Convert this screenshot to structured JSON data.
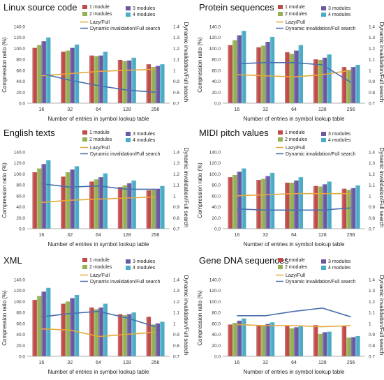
{
  "colors": {
    "one_module": "#bf4b4b",
    "two_modules": "#93b254",
    "three_modules": "#6c57a0",
    "four_modules": "#4bacc6",
    "lazy_full": "#e4a93c",
    "dynamic_full": "#4a6fb0"
  },
  "chart_data": [
    {
      "type": "bar",
      "title": "Linux source code",
      "xlabel": "Number of entries in symbol lookup table",
      "ylabel": "Compression ratio (%)",
      "ylabel2": "Dynamic invalidation/Full search",
      "categories": [
        "16",
        "32",
        "64",
        "128",
        "256"
      ],
      "ylim": [
        0,
        140
      ],
      "yticks": [
        "0.0",
        "20.0",
        "40.0",
        "60.0",
        "80.0",
        "100.0",
        "120.0",
        "140.0"
      ],
      "y2lim": [
        0.7,
        1.4
      ],
      "y2ticks": [
        "0.7",
        "0.8",
        "0.9",
        "1",
        "1.1",
        "1.2",
        "1.3",
        "1.4"
      ],
      "grid": false,
      "series": [
        {
          "name": "1 module",
          "values": [
            101,
            94,
            87,
            79,
            71
          ]
        },
        {
          "name": "2 modules",
          "values": [
            106,
            96,
            86,
            77,
            66
          ]
        },
        {
          "name": "3 modules",
          "values": [
            113,
            101,
            87,
            78,
            68
          ]
        },
        {
          "name": "4 modules",
          "values": [
            120,
            107,
            94,
            83,
            71
          ]
        }
      ],
      "lines": [
        {
          "name": "Lazy/Full",
          "values": [
            0.95,
            0.97,
            0.99,
            1.0,
            1.01
          ]
        },
        {
          "name": "Dynamic invalidation/Full search",
          "values": [
            0.97,
            0.91,
            0.86,
            0.82,
            0.8
          ]
        }
      ]
    },
    {
      "type": "bar",
      "title": "Protein sequences",
      "xlabel": "Number of entries in symbol lookup table",
      "ylabel": "Compression ratio (%)",
      "ylabel2": "Dynamic invalidation/Full search",
      "categories": [
        "16",
        "32",
        "64",
        "128",
        "256"
      ],
      "ylim": [
        0,
        140
      ],
      "yticks": [
        "0.0",
        "20.0",
        "40.0",
        "60.0",
        "80.0",
        "100.0",
        "120.0",
        "140.0"
      ],
      "y2lim": [
        0.7,
        1.4
      ],
      "y2ticks": [
        "0.7",
        "0.8",
        "0.9",
        "1",
        "1.1",
        "1.2",
        "1.3",
        "1.4"
      ],
      "grid": false,
      "series": [
        {
          "name": "1 module",
          "values": [
            106,
            102,
            93,
            80,
            66
          ]
        },
        {
          "name": "2 modules",
          "values": [
            115,
            105,
            90,
            79,
            61
          ]
        },
        {
          "name": "3 modules",
          "values": [
            124,
            112,
            96,
            83,
            66
          ]
        },
        {
          "name": "4 modules",
          "values": [
            132,
            121,
            106,
            89,
            70
          ]
        }
      ],
      "lines": [
        {
          "name": "Lazy/Full",
          "values": [
            0.96,
            0.95,
            0.94,
            0.96,
            1.0
          ]
        },
        {
          "name": "Dynamic invalidation/Full search",
          "values": [
            1.06,
            1.07,
            1.07,
            1.05,
            0.89
          ]
        }
      ]
    },
    {
      "type": "bar",
      "title": "English texts",
      "xlabel": "Number of entries in symbol lookup table",
      "ylabel": "Compression ratio (%)",
      "ylabel2": "Dynamic invalidation/Full search",
      "categories": [
        "16",
        "32",
        "64",
        "128",
        "256"
      ],
      "ylim": [
        0,
        140
      ],
      "yticks": [
        "0.0",
        "20.0",
        "40.0",
        "60.0",
        "80.0",
        "100.0",
        "120.0",
        "140.0"
      ],
      "y2lim": [
        0.7,
        1.4
      ],
      "y2ticks": [
        "0.7",
        "0.8",
        "0.9",
        "1",
        "1.1",
        "1.2",
        "1.3",
        "1.4"
      ],
      "grid": false,
      "series": [
        {
          "name": "1 module",
          "values": [
            103,
            95,
            86,
            76,
            70
          ]
        },
        {
          "name": "2 modules",
          "values": [
            110,
            103,
            90,
            79,
            71
          ]
        },
        {
          "name": "3 modules",
          "values": [
            118,
            108,
            94,
            83,
            73
          ]
        },
        {
          "name": "4 modules",
          "values": [
            125,
            114,
            101,
            88,
            78
          ]
        }
      ],
      "lines": [
        {
          "name": "Lazy/Full",
          "values": [
            0.94,
            0.96,
            0.97,
            0.98,
            0.99
          ]
        },
        {
          "name": "Dynamic invalidation/Full search",
          "values": [
            1.11,
            1.08,
            1.09,
            1.06,
            1.06
          ]
        }
      ]
    },
    {
      "type": "bar",
      "title": "MIDI pitch values",
      "xlabel": "Number of entries in symbol lookup table",
      "ylabel": "Compression ratio (%)",
      "ylabel2": "Dynamic invalidation/Full search",
      "categories": [
        "16",
        "32",
        "64",
        "128",
        "256"
      ],
      "ylim": [
        0,
        140
      ],
      "yticks": [
        "0.0",
        "20.0",
        "40.0",
        "60.0",
        "80.0",
        "100.0",
        "120.0",
        "140.0"
      ],
      "y2lim": [
        0.7,
        1.4
      ],
      "y2ticks": [
        "0.7",
        "0.8",
        "0.9",
        "1",
        "1.1",
        "1.2",
        "1.3",
        "1.4"
      ],
      "grid": false,
      "series": [
        {
          "name": "1 module",
          "values": [
            94,
            89,
            84,
            78,
            73
          ]
        },
        {
          "name": "2 modules",
          "values": [
            98,
            91,
            84,
            77,
            71
          ]
        },
        {
          "name": "3 modules",
          "values": [
            104,
            96,
            88,
            81,
            74
          ]
        },
        {
          "name": "4 modules",
          "values": [
            110,
            102,
            94,
            86,
            79
          ]
        }
      ],
      "lines": [
        {
          "name": "Lazy/Full",
          "values": [
            1.0,
            1.01,
            1.02,
            1.02,
            1.02
          ]
        },
        {
          "name": "Dynamic invalidation/Full search",
          "values": [
            0.88,
            0.87,
            0.87,
            0.87,
            0.89
          ]
        }
      ]
    },
    {
      "type": "bar",
      "title": "XML",
      "xlabel": "Number of entries in symbol lookup table",
      "ylabel": "Compression ratio (%)",
      "ylabel2": "Dynamic invalidation/Full search",
      "categories": [
        "16",
        "32",
        "64",
        "128",
        "256"
      ],
      "ylim": [
        0,
        140
      ],
      "yticks": [
        "0.0",
        "20.0",
        "40.0",
        "60.0",
        "80.0",
        "100.0",
        "120.0",
        "140.0"
      ],
      "y2lim": [
        0.7,
        1.4
      ],
      "y2ticks": [
        "0.7",
        "0.8",
        "0.9",
        "1",
        "1.1",
        "1.2",
        "1.3",
        "1.4"
      ],
      "grid": false,
      "series": [
        {
          "name": "1 module",
          "values": [
            103,
            96,
            89,
            77,
            72
          ]
        },
        {
          "name": "2 modules",
          "values": [
            110,
            100,
            86,
            75,
            58
          ]
        },
        {
          "name": "3 modules",
          "values": [
            118,
            106,
            89,
            77,
            60
          ]
        },
        {
          "name": "4 modules",
          "values": [
            125,
            112,
            96,
            80,
            63
          ]
        }
      ],
      "lines": [
        {
          "name": "Lazy/Full",
          "values": [
            0.95,
            0.94,
            0.88,
            0.9,
            0.92
          ]
        },
        {
          "name": "Dynamic invalidation/Full search",
          "values": [
            1.06,
            1.09,
            1.11,
            1.05,
            0.97
          ]
        }
      ]
    },
    {
      "type": "bar",
      "title": "Gene DNA sequences",
      "xlabel": "Number of entries in symbol lookup table",
      "ylabel": "Compression ratio (%)",
      "ylabel2": "Dynamic invalidation/Full search",
      "categories": [
        "16",
        "32",
        "64",
        "128",
        "256"
      ],
      "ylim": [
        0,
        140
      ],
      "yticks": [
        "0.0",
        "20.0",
        "40.0",
        "60.0",
        "80.0",
        "100.0",
        "120.0",
        "140.0"
      ],
      "y2lim": [
        0.7,
        1.4
      ],
      "y2ticks": [
        "0.7",
        "0.8",
        "0.9",
        "1",
        "1.1",
        "1.2",
        "1.3",
        "1.4"
      ],
      "grid": false,
      "series": [
        {
          "name": "1 module",
          "values": [
            58,
            56,
            56,
            57,
            56
          ]
        },
        {
          "name": "2 modules",
          "values": [
            61,
            57,
            51,
            41,
            34
          ]
        },
        {
          "name": "3 modules",
          "values": [
            65,
            59,
            53,
            44,
            35
          ]
        },
        {
          "name": "4 modules",
          "values": [
            69,
            62,
            55,
            45,
            37
          ]
        }
      ],
      "lines": [
        {
          "name": "Lazy/Full",
          "values": [
            0.99,
            0.98,
            0.98,
            0.97,
            0.98
          ]
        },
        {
          "name": "Dynamic invalidation/Full search",
          "values": [
            1.07,
            1.07,
            1.11,
            1.14,
            1.06
          ]
        }
      ]
    }
  ]
}
